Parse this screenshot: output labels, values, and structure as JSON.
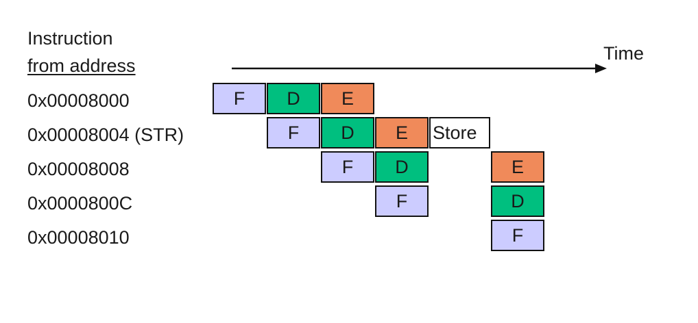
{
  "header": {
    "line1": "Instruction",
    "line2": "from address",
    "time_label": "Time"
  },
  "rows": [
    {
      "address": "0x00008000"
    },
    {
      "address": "0x00008004 (STR)"
    },
    {
      "address": "0x00008008"
    },
    {
      "address": "0x0000800C"
    },
    {
      "address": "0x00008010"
    }
  ],
  "stages": {
    "fetch": "F",
    "decode": "D",
    "execute": "E",
    "store": "Store"
  },
  "colors": {
    "fetch": "#ccccff",
    "decode": "#00bf7f",
    "execute": "#f08a5a",
    "store": "#ffffff"
  }
}
